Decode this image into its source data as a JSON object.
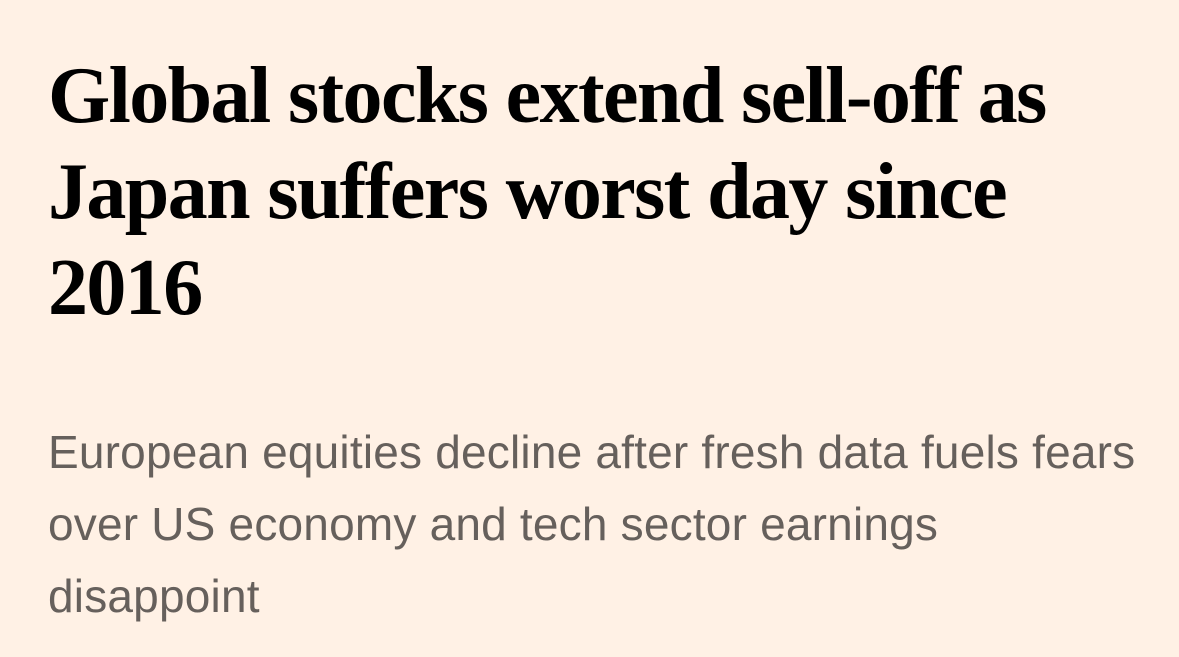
{
  "article": {
    "headline": "Global stocks extend sell-off as Japan suffers worst day since 2016",
    "standfirst": "European equities decline after fresh data fuels fears over US economy and tech sector earnings disappoint"
  },
  "colors": {
    "background": "#fff1e5",
    "headline": "#000000",
    "standfirst": "#66605c",
    "topic_tag": "#990f3d"
  }
}
